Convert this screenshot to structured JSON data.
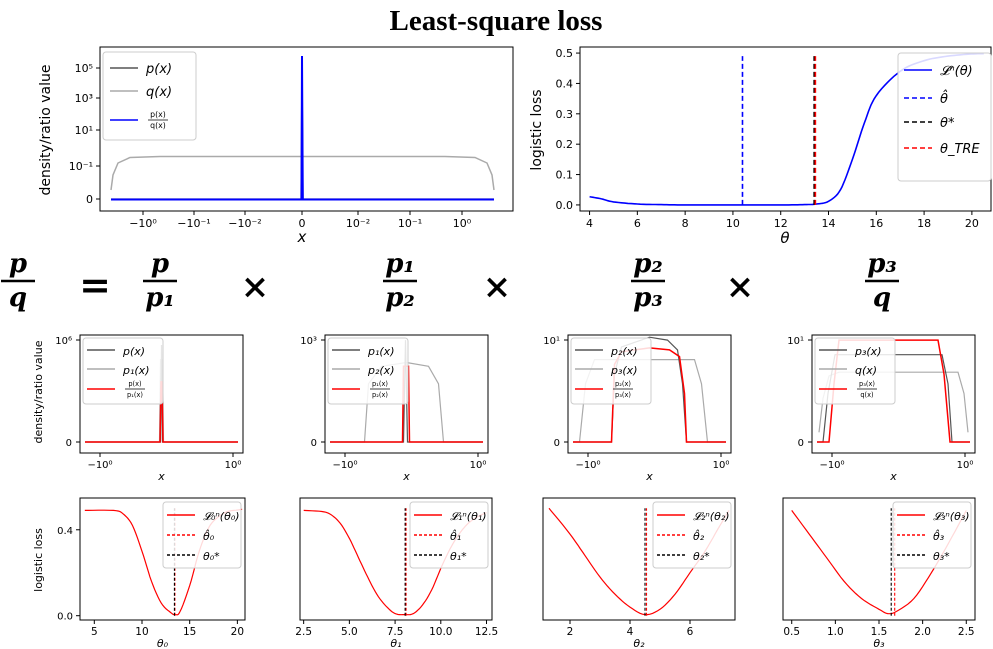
{
  "title": "Least-square loss",
  "equation": {
    "lhs": {
      "num": "p",
      "den": "q"
    },
    "equals": "=",
    "times": "×",
    "terms": [
      {
        "num": "p",
        "den": "p₁"
      },
      {
        "num": "p₁",
        "den": "p₂"
      },
      {
        "num": "p₂",
        "den": "p₃"
      },
      {
        "num": "p₃",
        "den": "q"
      }
    ]
  },
  "chart_data": [
    {
      "type": "line",
      "xlabel": "x",
      "ylabel": "density/ratio value",
      "yscale": "symlog",
      "xscale": "symlog",
      "x_ticks": [
        "−10⁰",
        "−10⁻¹",
        "−10⁻²",
        "0",
        "10⁻²",
        "10⁻¹",
        "10⁰"
      ],
      "y_ticks": [
        "0",
        "10⁻¹",
        "10¹",
        "10³",
        "10⁵"
      ],
      "legend": [
        "p(x)",
        "q(x)",
        "p(x)/q(x)"
      ],
      "legend_loc": "upper left",
      "colors": [
        "#555555",
        "#aaaaaa",
        "#0000ff"
      ],
      "series": [
        {
          "name": "p(x)",
          "description": "spike at x=0 reaching ~10^6"
        },
        {
          "name": "q(x)",
          "plateau": 0.3
        },
        {
          "name": "p(x)/q(x)",
          "description": "spike at x=0, ~0 elsewhere"
        }
      ]
    },
    {
      "type": "line",
      "xlabel": "θ",
      "ylabel": "logistic loss",
      "xlim": [
        3.6,
        20.8
      ],
      "ylim": [
        -0.02,
        0.52
      ],
      "x_ticks": [
        "4",
        "6",
        "8",
        "10",
        "12",
        "14",
        "16",
        "18",
        "20"
      ],
      "y_ticks": [
        "0.0",
        "0.1",
        "0.2",
        "0.3",
        "0.4",
        "0.5"
      ],
      "legend": [
        "𝓛ⁿ(θ)",
        "θ̂",
        "θ*",
        "θ_TRE"
      ],
      "legend_loc": "upper right",
      "colors": [
        "#0000ff",
        "#0000ff",
        "#000000",
        "#ff0000"
      ],
      "curve": {
        "x": [
          4,
          4.5,
          5,
          6,
          7,
          8,
          10,
          12,
          13,
          13.5,
          14,
          14.5,
          15,
          15.5,
          16,
          17,
          18,
          19,
          20,
          20.5
        ],
        "y": [
          0.027,
          0.02,
          0.01,
          0.003,
          0.001,
          0.0,
          0.0,
          0.0,
          0.001,
          0.003,
          0.012,
          0.05,
          0.15,
          0.27,
          0.36,
          0.44,
          0.475,
          0.49,
          0.497,
          0.498
        ]
      },
      "vlines": [
        {
          "name": "θ̂",
          "x": 10.4,
          "style": "dashed"
        },
        {
          "name": "θ*",
          "x": 13.4,
          "style": "dashed"
        },
        {
          "name": "θ_TRE",
          "x": 13.45,
          "style": "dashed"
        }
      ]
    },
    {
      "type": "line",
      "ylabel": "density/ratio value",
      "xlabel": "x",
      "x_ticks": [
        "−10⁰",
        "10⁰"
      ],
      "y_ticks": [
        "0",
        "10⁶"
      ],
      "legend": [
        "p(x)",
        "p₁(x)",
        "p(x)/p₁(x)"
      ],
      "colors": [
        "#555555",
        "#aaaaaa",
        "#ff0000"
      ],
      "series": [
        {
          "name": "p(x)",
          "peak": 1.0
        },
        {
          "name": "p₁(x)",
          "peak": 0.85
        },
        {
          "name": "p(x)/p₁(x)",
          "peak": 0.62
        }
      ]
    },
    {
      "type": "line",
      "xlabel": "x",
      "x_ticks": [
        "−10⁰",
        "10⁰"
      ],
      "y_ticks": [
        "0",
        "10³"
      ],
      "legend": [
        "p₁(x)",
        "p₂(x)",
        "p₁(x)/p₂(x)"
      ],
      "colors": [
        "#555555",
        "#aaaaaa",
        "#ff0000"
      ],
      "series": [
        {
          "name": "p₁(x)",
          "peak": 1.05
        },
        {
          "name": "p₂(x)",
          "plateau": 0.82
        },
        {
          "name": "p₁(x)/p₂(x)",
          "peak": 0.78
        }
      ]
    },
    {
      "type": "line",
      "xlabel": "x",
      "x_ticks": [
        "−10⁰",
        "10⁰"
      ],
      "y_ticks": [
        "0",
        "10¹"
      ],
      "legend": [
        "p₂(x)",
        "p₃(x)",
        "p₂(x)/p₃(x)"
      ],
      "colors": [
        "#555555",
        "#aaaaaa",
        "#ff0000"
      ],
      "series": [
        {
          "name": "p₂(x)",
          "plateau": 1.08
        },
        {
          "name": "p₃(x)",
          "plateau": 0.85
        },
        {
          "name": "p₂(x)/p₃(x)",
          "plateau": 0.97
        }
      ]
    },
    {
      "type": "line",
      "xlabel": "x",
      "x_ticks": [
        "−10⁰",
        "10⁰"
      ],
      "y_ticks": [
        "0",
        "10¹"
      ],
      "legend": [
        "p₃(x)",
        "q(x)",
        "p₃(x)/q(x)"
      ],
      "colors": [
        "#555555",
        "#aaaaaa",
        "#ff0000"
      ],
      "series": [
        {
          "name": "p₃(x)",
          "plateau": 0.9
        },
        {
          "name": "q(x)",
          "plateau": 0.72
        },
        {
          "name": "p₃(x)/q(x)",
          "plateau": 1.05
        }
      ]
    },
    {
      "type": "line",
      "ylabel": "logistic loss",
      "xlabel": "θ₀",
      "xlim": [
        3.5,
        20.8
      ],
      "ylim": [
        -0.02,
        0.52
      ],
      "x_ticks": [
        "5",
        "10",
        "15",
        "20"
      ],
      "y_ticks": [
        "0.0",
        "0.4"
      ],
      "legend": [
        "𝓛₀ⁿ(θ₀)",
        "θ̂₀",
        "θ₀*"
      ],
      "colors": [
        "#ff0000",
        "#ff0000",
        "#000000"
      ],
      "curve": {
        "x": [
          4,
          7,
          8,
          9,
          10,
          11,
          12,
          13,
          13.5,
          14,
          15,
          16,
          17,
          18,
          19,
          20,
          20.5
        ],
        "y": [
          0.49,
          0.49,
          0.475,
          0.42,
          0.3,
          0.16,
          0.06,
          0.015,
          0.005,
          0.02,
          0.14,
          0.3,
          0.41,
          0.46,
          0.485,
          0.492,
          0.495
        ]
      },
      "vlines": [
        {
          "name": "θ̂₀",
          "x": 13.45
        },
        {
          "name": "θ₀*",
          "x": 13.4
        }
      ]
    },
    {
      "type": "line",
      "xlabel": "θ₁",
      "xlim": [
        2.3,
        12.8
      ],
      "ylim": [
        -0.02,
        0.52
      ],
      "x_ticks": [
        "2.5",
        "5.0",
        "7.5",
        "10.0",
        "12.5"
      ],
      "legend": [
        "𝓛₁ⁿ(θ₁)",
        "θ̂₁",
        "θ₁*"
      ],
      "colors": [
        "#ff0000",
        "#ff0000",
        "#000000"
      ],
      "curve": {
        "x": [
          2.5,
          3.5,
          4,
          4.5,
          5,
          5.5,
          6,
          6.5,
          7,
          7.5,
          8,
          8.5,
          9,
          9.5,
          10,
          10.5,
          11,
          11.5,
          12,
          12.5
        ],
        "y": [
          0.49,
          0.485,
          0.47,
          0.43,
          0.36,
          0.27,
          0.18,
          0.1,
          0.045,
          0.01,
          0.005,
          0.01,
          0.05,
          0.12,
          0.22,
          0.31,
          0.38,
          0.43,
          0.46,
          0.48
        ]
      },
      "vlines": [
        {
          "name": "θ̂₁",
          "x": 8.1
        },
        {
          "name": "θ₁*",
          "x": 8.05
        }
      ]
    },
    {
      "type": "line",
      "xlabel": "θ₂",
      "xlim": [
        1.1,
        7.5
      ],
      "ylim": [
        -0.02,
        0.52
      ],
      "x_ticks": [
        "2",
        "4",
        "6"
      ],
      "legend": [
        "𝓛₂ⁿ(θ₂)",
        "θ̂₂",
        "θ₂*"
      ],
      "colors": [
        "#ff0000",
        "#ff0000",
        "#000000"
      ],
      "curve": {
        "x": [
          1.3,
          2,
          2.5,
          3,
          3.5,
          4,
          4.5,
          5,
          5.5,
          6,
          6.5,
          7,
          7.3
        ],
        "y": [
          0.5,
          0.38,
          0.28,
          0.18,
          0.1,
          0.04,
          0.005,
          0.03,
          0.1,
          0.2,
          0.3,
          0.42,
          0.49
        ]
      },
      "vlines": [
        {
          "name": "θ̂₂",
          "x": 4.55
        },
        {
          "name": "θ₂*",
          "x": 4.5
        }
      ]
    },
    {
      "type": "line",
      "xlabel": "θ₃",
      "xlim": [
        0.4,
        2.6
      ],
      "ylim": [
        -0.02,
        0.52
      ],
      "x_ticks": [
        "0.5",
        "1.0",
        "1.5",
        "2.0",
        "2.5"
      ],
      "legend": [
        "𝓛₃ⁿ(θ₃)",
        "θ̂₃",
        "θ₃*"
      ],
      "colors": [
        "#ff0000",
        "#ff0000",
        "#000000"
      ],
      "curve": {
        "x": [
          0.5,
          0.7,
          0.9,
          1.1,
          1.3,
          1.5,
          1.6,
          1.7,
          1.9,
          2.1,
          2.3,
          2.5
        ],
        "y": [
          0.49,
          0.38,
          0.27,
          0.16,
          0.08,
          0.03,
          0.01,
          0.02,
          0.08,
          0.2,
          0.34,
          0.49
        ]
      },
      "vlines": [
        {
          "name": "θ̂₃",
          "x": 1.68
        },
        {
          "name": "θ₃*",
          "x": 1.64
        }
      ]
    }
  ]
}
